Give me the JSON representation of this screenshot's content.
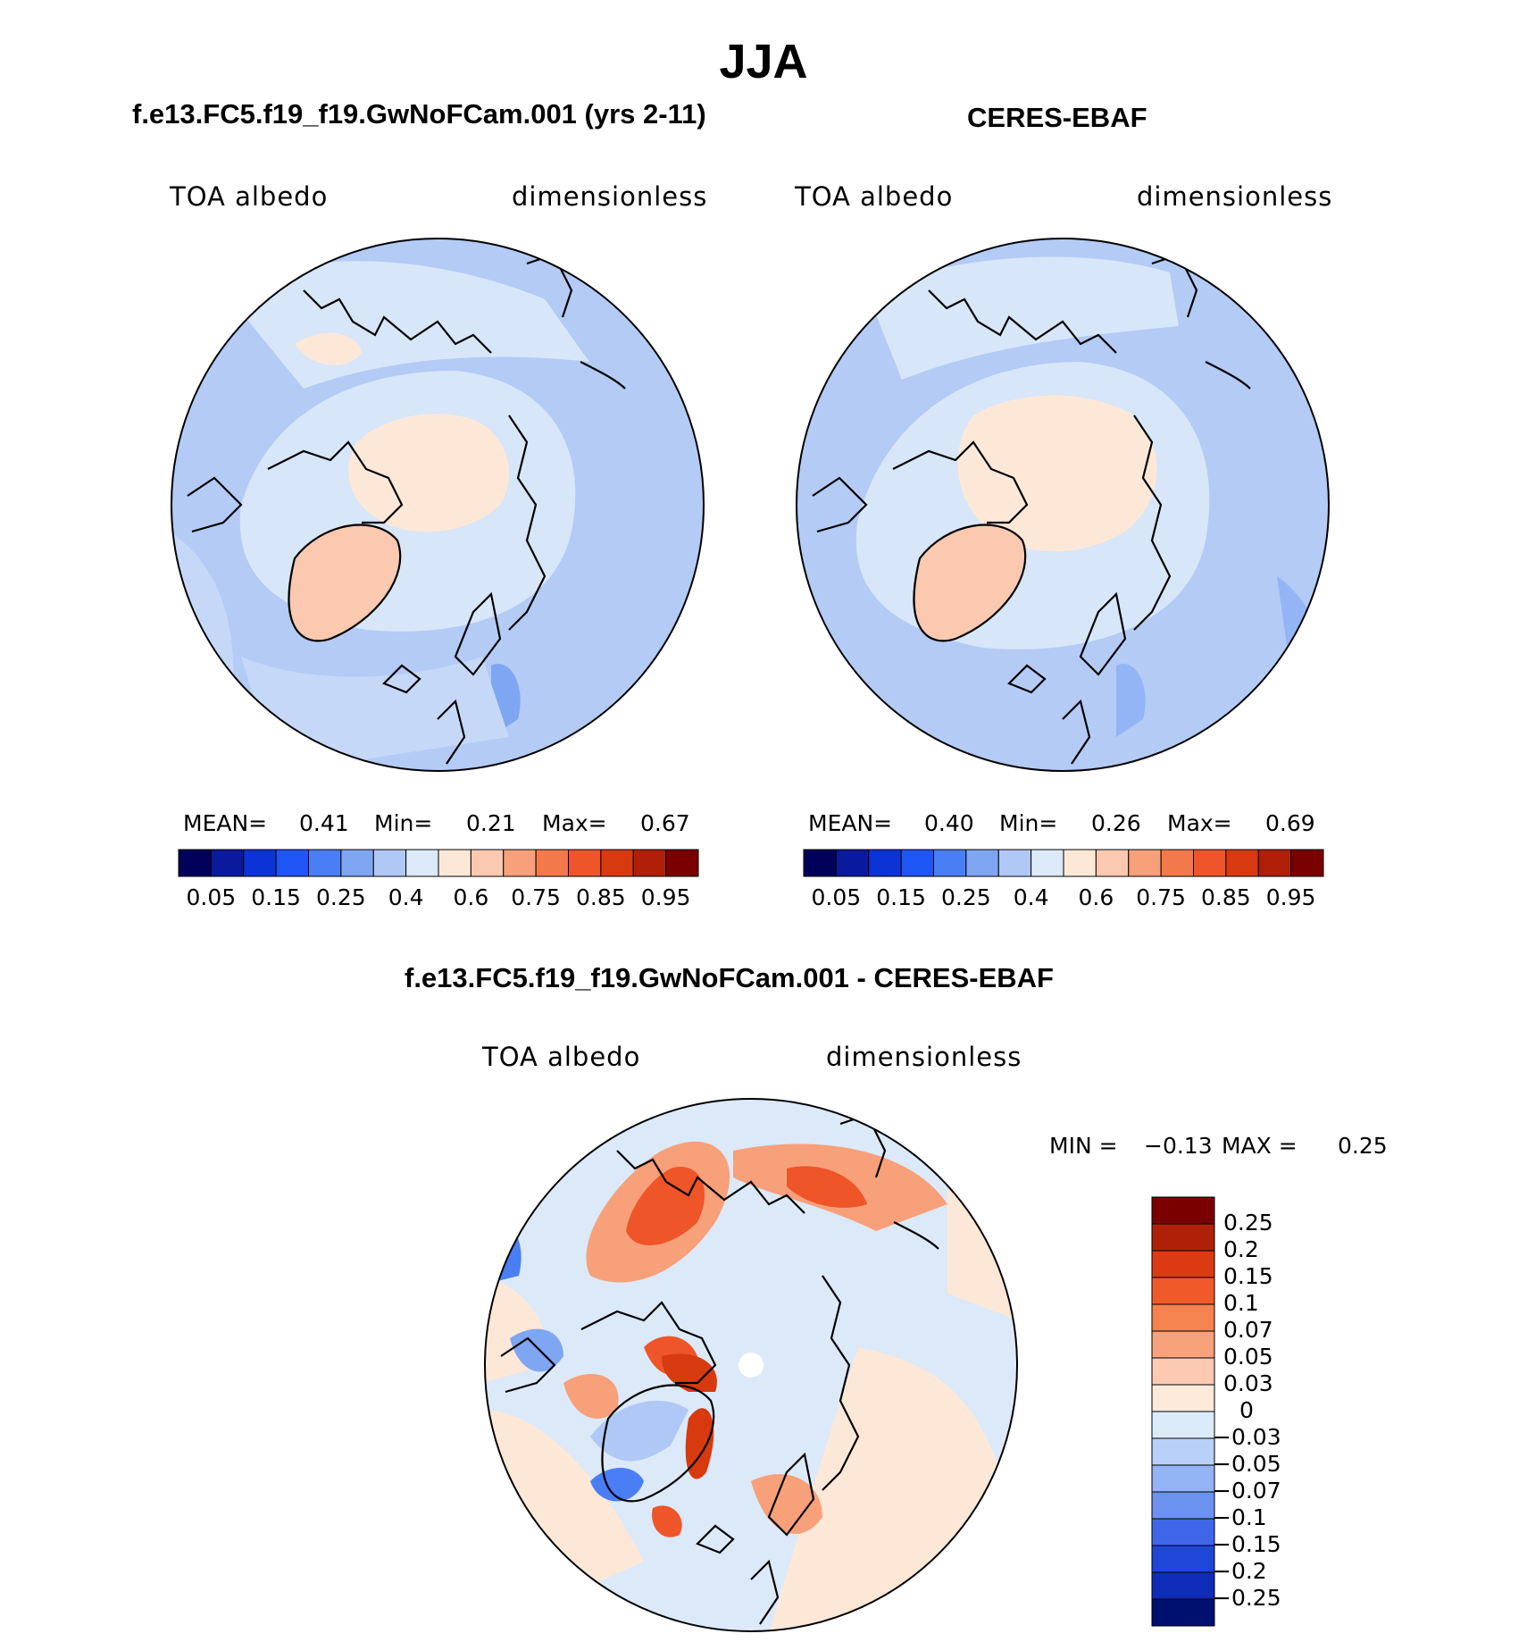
{
  "page": {
    "season": "JJA"
  },
  "panels": [
    {
      "title": "f.e13.FC5.f19_f19.GwNoFCam.001 (yrs 2-11)",
      "variable": "TOA albedo",
      "units": "dimensionless",
      "stats": {
        "mean_label": "MEAN=",
        "mean": "0.41",
        "min_label": "Min=",
        "min": "0.21",
        "max_label": "Max=",
        "max": "0.67"
      }
    },
    {
      "title": "CERES-EBAF",
      "variable": "TOA albedo",
      "units": "dimensionless",
      "stats": {
        "mean_label": "MEAN=",
        "mean": "0.40",
        "min_label": "Min=",
        "min": "0.26",
        "max_label": "Max=",
        "max": "0.69"
      }
    },
    {
      "title": "f.e13.FC5.f19_f19.GwNoFCam.001 - CERES-EBAF",
      "variable": "TOA albedo",
      "units": "dimensionless",
      "stats": {
        "min_label": "MIN =",
        "min": "−0.13",
        "max_label": "MAX =",
        "max": "0.25"
      }
    }
  ],
  "colorbars": {
    "field": {
      "colors": [
        "#00005a",
        "#0a1a9c",
        "#0b33d6",
        "#1e55f5",
        "#4a7ef5",
        "#7fa6f3",
        "#b0c8f5",
        "#dce9f8",
        "#fde8d8",
        "#fbc8b0",
        "#f8a07a",
        "#f27a4a",
        "#ee5528",
        "#d83a10",
        "#b02008",
        "#7a0000"
      ],
      "ticks": [
        "0.05",
        "0.15",
        "0.25",
        "0.4",
        "0.6",
        "0.75",
        "0.85",
        "0.95"
      ]
    },
    "diff": {
      "colors": [
        "#7a0000",
        "#b02008",
        "#dc3a12",
        "#f05a2a",
        "#f5834f",
        "#f8a27c",
        "#fccab2",
        "#fdeadb",
        "#dcebfa",
        "#b9d1f8",
        "#93b5f5",
        "#6b92ef",
        "#3f66e8",
        "#1e46d8",
        "#0f2cb8",
        "#00106e"
      ],
      "ticks": [
        "0.25",
        "0.2",
        "0.15",
        "0.1",
        "0.07",
        "0.05",
        "0.03",
        "0",
        "−0.03",
        "−0.05",
        "−0.07",
        "−0.1",
        "−0.15",
        "−0.2",
        "−0.25"
      ]
    }
  },
  "map_colors": {
    "ocean_low": "#b3cbf5",
    "ocean_mid": "#d7e6f9",
    "ice": "#fde8d8",
    "greenland": "#fbc8b0",
    "low_dark": "#5c86ec",
    "diff_pos_strong": "#ee5528",
    "diff_pos_mid": "#f8a07a",
    "diff_pos_weak": "#fde8d8",
    "diff_neg_weak": "#dce9f8",
    "diff_neg_mid": "#b0c8f5",
    "diff_neg_strong": "#4a7ef5"
  }
}
